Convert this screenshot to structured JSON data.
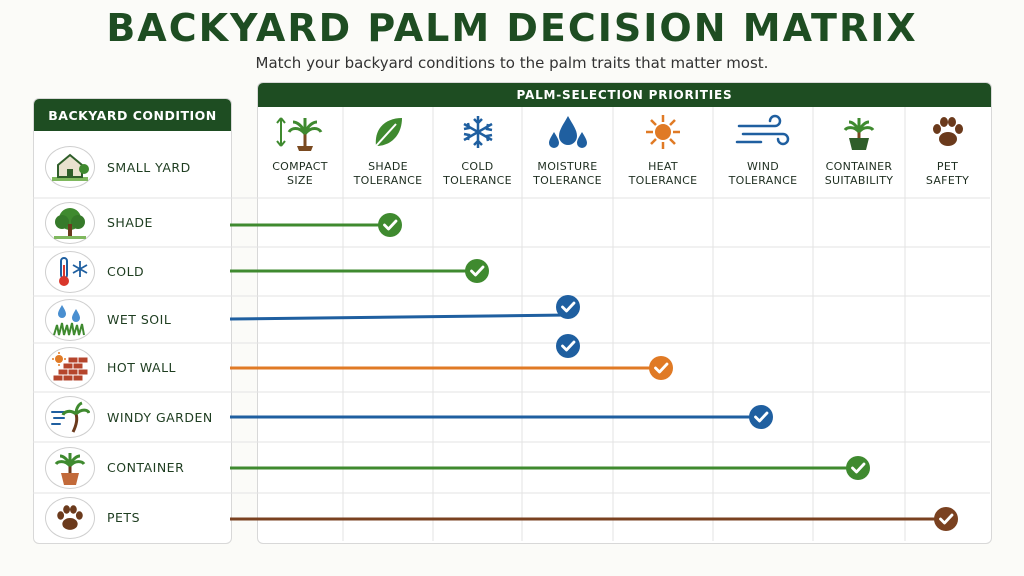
{
  "title": "BACKYARD PALM DECISION MATRIX",
  "subtitle": "Match your backyard conditions to the palm traits that matter most.",
  "left_header": "BACKYARD CONDITION",
  "right_header": "PALM-SELECTION PRIORITIES",
  "columns": [
    {
      "label": "COMPACT\nSIZE",
      "icon": "compact-palm-icon"
    },
    {
      "label": "SHADE\nTOLERANCE",
      "icon": "leaf-icon"
    },
    {
      "label": "COLD\nTOLERANCE",
      "icon": "snowflake-icon"
    },
    {
      "label": "MOISTURE\nTOLERANCE",
      "icon": "water-drops-icon"
    },
    {
      "label": "HEAT\nTOLERANCE",
      "icon": "sun-icon"
    },
    {
      "label": "WIND\nTOLERANCE",
      "icon": "wind-icon"
    },
    {
      "label": "CONTAINER\nSUITABILITY",
      "icon": "potted-palm-icon"
    },
    {
      "label": "PET\nSAFETY",
      "icon": "paw-icon"
    }
  ],
  "rows": [
    {
      "label": "SMALL YARD",
      "icon": "house-icon"
    },
    {
      "label": "SHADE",
      "icon": "tree-icon"
    },
    {
      "label": "COLD",
      "icon": "thermometer-icon"
    },
    {
      "label": "WET SOIL",
      "icon": "wet-grass-icon"
    },
    {
      "label": "HOT WALL",
      "icon": "brick-wall-icon"
    },
    {
      "label": "WINDY GARDEN",
      "icon": "windy-palm-icon"
    },
    {
      "label": "CONTAINER",
      "icon": "container-palm-icon"
    },
    {
      "label": "PETS",
      "icon": "pet-paw-icon"
    }
  ],
  "connections": [
    {
      "row": "SHADE",
      "column": "SHADE\nTOLERANCE",
      "color": "#3f8a2f"
    },
    {
      "row": "COLD",
      "column": "COLD\nTOLERANCE",
      "color": "#3f8a2f"
    },
    {
      "row": "WET SOIL",
      "column": "MOISTURE\nTOLERANCE",
      "color": "#1f5fa0"
    },
    {
      "row": "HOT WALL",
      "column": "HEAT\nTOLERANCE",
      "color": "#e07a25"
    },
    {
      "row": "WINDY GARDEN",
      "column": "WIND\nTOLERANCE",
      "color": "#1f5fa0"
    },
    {
      "row": "CONTAINER",
      "column": "CONTAINER\nSUITABILITY",
      "color": "#3f8a2f"
    },
    {
      "row": "PETS",
      "column": "PET\nSAFETY",
      "color": "#7a4120"
    }
  ],
  "standalone_checks": [
    {
      "column": "MOISTURE\nTOLERANCE",
      "color": "#1f5fa0"
    }
  ],
  "colors": {
    "brand": "#1e4d22",
    "green": "#3f8a2f",
    "blue": "#1f5fa0",
    "orange": "#e07a25",
    "brown": "#7a4120"
  }
}
